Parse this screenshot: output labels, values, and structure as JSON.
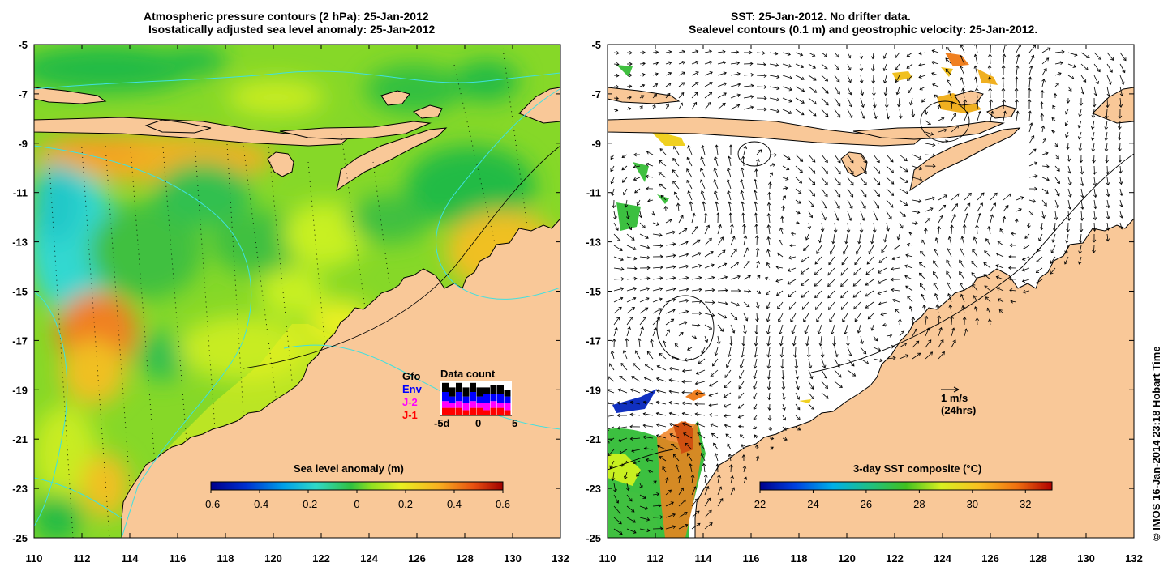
{
  "left_panel": {
    "title_line1": "Atmospheric pressure contours (2 hPa): 25-Jan-2012",
    "title_line2": "Isostatically adjusted sea level anomaly: 25-Jan-2012",
    "colorbar": {
      "title": "Sea level anomaly (m)",
      "min": -0.6,
      "max": 0.6,
      "ticks": [
        "-0.6",
        "-0.4",
        "-0.2",
        "0",
        "0.2",
        "0.4",
        "0.6"
      ]
    },
    "data_count": {
      "title": "Data count",
      "legend": [
        {
          "label": "Gfo",
          "color": "#000000"
        },
        {
          "label": "Env",
          "color": "#0000ff"
        },
        {
          "label": "J-2",
          "color": "#ff00ff"
        },
        {
          "label": "J-1",
          "color": "#ff0000"
        }
      ],
      "axis_ticks": [
        "-5d",
        "0",
        "5"
      ],
      "bars": [
        {
          "day": -5,
          "j1": 3,
          "j2": 3,
          "env": 4,
          "gfo": 4
        },
        {
          "day": -4,
          "j1": 3,
          "j2": 2,
          "env": 3,
          "gfo": 4
        },
        {
          "day": -3,
          "j1": 3,
          "j2": 3,
          "env": 4,
          "gfo": 4
        },
        {
          "day": -2,
          "j1": 2,
          "j2": 3,
          "env": 3,
          "gfo": 4
        },
        {
          "day": -1,
          "j1": 3,
          "j2": 3,
          "env": 4,
          "gfo": 4
        },
        {
          "day": 0,
          "j1": 3,
          "j2": 2,
          "env": 3,
          "gfo": 4
        },
        {
          "day": 1,
          "j1": 2,
          "j2": 3,
          "env": 4,
          "gfo": 3
        },
        {
          "day": 2,
          "j1": 3,
          "j2": 3,
          "env": 3,
          "gfo": 4
        },
        {
          "day": 3,
          "j1": 3,
          "j2": 2,
          "env": 4,
          "gfo": 4
        },
        {
          "day": 4,
          "j1": 2,
          "j2": 3,
          "env": 3,
          "gfo": 3
        }
      ]
    }
  },
  "right_panel": {
    "title_line1": "SST: 25-Jan-2012. No drifter data.",
    "title_line2": "Sealevel contours (0.1 m) and geostrophic velocity: 25-Jan-2012.",
    "colorbar": {
      "title": "3-day SST composite (°C)",
      "min": 22,
      "max": 33,
      "ticks": [
        "22",
        "24",
        "26",
        "28",
        "30",
        "32"
      ]
    },
    "scale_arrow": {
      "label1": "1 m/s",
      "label2": "(24hrs)"
    }
  },
  "axes": {
    "x_ticks": [
      "110",
      "112",
      "114",
      "116",
      "118",
      "120",
      "122",
      "124",
      "126",
      "128",
      "130",
      "132"
    ],
    "y_ticks": [
      "-5",
      "-7",
      "-9",
      "-11",
      "-13",
      "-15",
      "-17",
      "-19",
      "-21",
      "-23",
      "-25"
    ],
    "lon_range": [
      110,
      132
    ],
    "lat_range": [
      -25,
      -5
    ]
  },
  "credit": "© IMOS 16-Jan-2014 23:18 Hobart Time",
  "colors": {
    "land": "#f9c898",
    "contour_cyan": "#40e0e0",
    "sla_green": "#7cd820",
    "sla_dark_green": "#22bb44",
    "sla_yellow": "#d8f020",
    "sla_orange": "#f5a020",
    "sla_cyan": "#30d8d0"
  }
}
